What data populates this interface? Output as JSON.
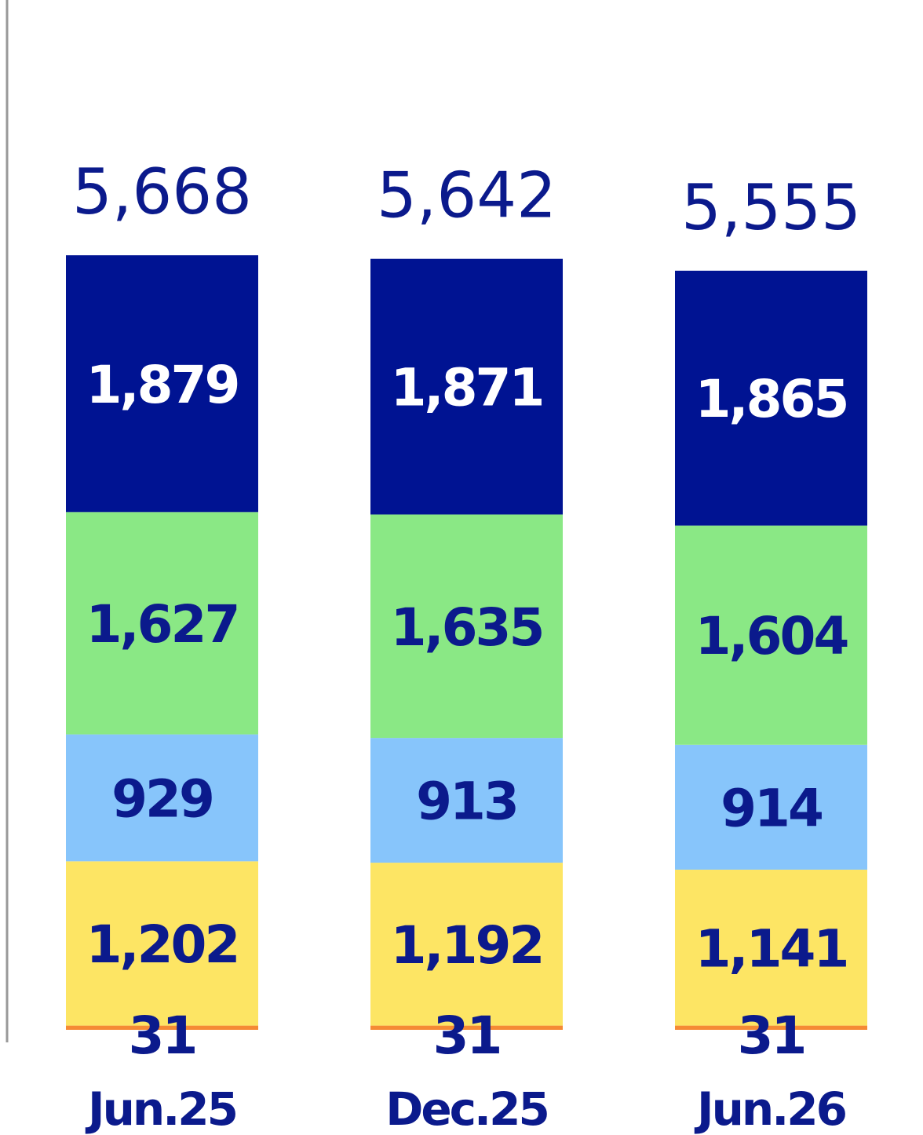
{
  "chart_data": {
    "type": "bar",
    "stacked": true,
    "categories": [
      "Jun.25",
      "Dec.25",
      "Jun.26"
    ],
    "series": [
      {
        "values": [
          31,
          31,
          31
        ],
        "color": "#f58a34"
      },
      {
        "values": [
          1202,
          1192,
          1141
        ],
        "color": "#fde564"
      },
      {
        "values": [
          929,
          913,
          914
        ],
        "color": "#87c5fb"
      },
      {
        "values": [
          1627,
          1635,
          1604
        ],
        "color": "#8ae885"
      },
      {
        "values": [
          1879,
          1871,
          1865
        ],
        "color": "#001392"
      }
    ],
    "totals": [
      5668,
      5642,
      5555
    ],
    "value_labels": [
      [
        "31",
        "1,202",
        "929",
        "1,627",
        "1,879"
      ],
      [
        "31",
        "1,192",
        "913",
        "1,635",
        "1,871"
      ],
      [
        "31",
        "1,141",
        "914",
        "1,604",
        "1,865"
      ]
    ],
    "total_labels": [
      "5,668",
      "5,642",
      "5,555"
    ],
    "title": "",
    "xlabel": "",
    "ylabel": "",
    "legend": "none",
    "grid": false,
    "text_colors": {
      "dark": "#0b1a8c",
      "light": "#ffffff",
      "axis": "#999999"
    }
  }
}
